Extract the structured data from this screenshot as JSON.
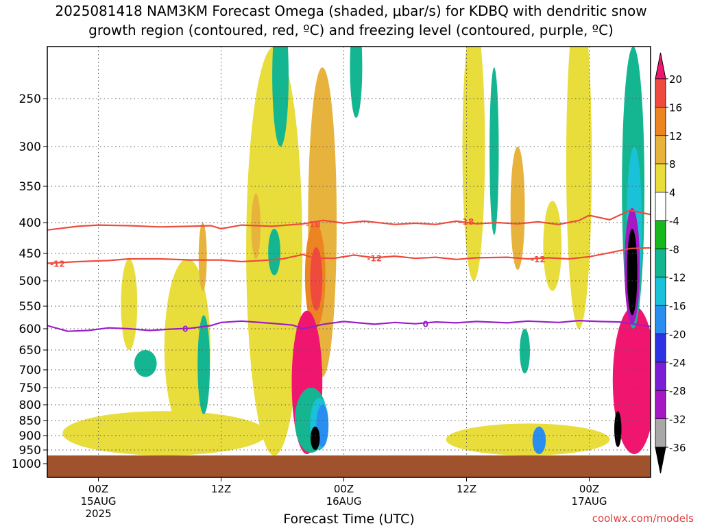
{
  "title_line1": "2025081418 NAM3KM Forecast Omega (shaded, μbar/s) for KDBQ with dendritic snow",
  "title_line2": "growth region (contoured, red, ºC) and freezing level (contoured, purple, ºC)",
  "credit": "coolwx.com/models",
  "chart_data": {
    "type": "heatmap",
    "title": "2025081418 NAM3KM Forecast Omega (shaded, μbar/s) for KDBQ with dendritic snow growth region (contoured, red, ºC) and freezing level (contoured, purple, ºC)",
    "xlabel": "Forecast Time (UTC)",
    "ylabel": "",
    "x_range_hours": [
      -5,
      54
    ],
    "x_ticks": [
      {
        "hour": 0,
        "lines": [
          "00Z",
          "15AUG",
          "2025"
        ]
      },
      {
        "hour": 12,
        "lines": [
          "12Z"
        ]
      },
      {
        "hour": 24,
        "lines": [
          "00Z",
          "16AUG"
        ]
      },
      {
        "hour": 36,
        "lines": [
          "12Z"
        ]
      },
      {
        "hour": 48,
        "lines": [
          "00Z",
          "17AUG"
        ]
      }
    ],
    "y_axis": {
      "scale": "pressure",
      "range_hpa": [
        1020,
        200
      ],
      "ticks": [
        250,
        300,
        350,
        400,
        450,
        500,
        550,
        600,
        650,
        700,
        750,
        800,
        850,
        900,
        950,
        1000
      ]
    },
    "ground_level_hpa": 970,
    "colorbar": {
      "units": "μbar/s",
      "levels": [
        20,
        16,
        12,
        8,
        4,
        -4,
        -8,
        -12,
        -16,
        -20,
        -24,
        -28,
        -32,
        -36
      ],
      "colors": [
        "#f0166f",
        "#ee4a3e",
        "#ec8421",
        "#e7b33c",
        "#e8dd3b",
        "#ffffff",
        "#18b81d",
        "#14b691",
        "#19c2d8",
        "#2a8df0",
        "#2d33e5",
        "#7b1fd7",
        "#a717c6",
        "#a8a8a8",
        "#000000"
      ]
    },
    "contours": [
      {
        "label": "-18",
        "color": "#ee4a3e",
        "points": [
          [
            -5,
            412
          ],
          [
            -2,
            406
          ],
          [
            0,
            404
          ],
          [
            3,
            405
          ],
          [
            6,
            407
          ],
          [
            9,
            406
          ],
          [
            11,
            405
          ],
          [
            12,
            410
          ],
          [
            14,
            404
          ],
          [
            17,
            406
          ],
          [
            20,
            402
          ],
          [
            22,
            397
          ],
          [
            24,
            401
          ],
          [
            26,
            398
          ],
          [
            29,
            403
          ],
          [
            31,
            401
          ],
          [
            33,
            403
          ],
          [
            35,
            398
          ],
          [
            37,
            402
          ],
          [
            39,
            400
          ],
          [
            41,
            402
          ],
          [
            43,
            399
          ],
          [
            45,
            403
          ],
          [
            47,
            397
          ],
          [
            48,
            390
          ],
          [
            50,
            396
          ],
          [
            52,
            383
          ],
          [
            54,
            389
          ]
        ]
      },
      {
        "label": "-12",
        "color": "#ee4a3e",
        "points": [
          [
            -5,
            468
          ],
          [
            -2,
            465
          ],
          [
            1,
            463
          ],
          [
            3,
            460
          ],
          [
            6,
            460
          ],
          [
            9,
            462
          ],
          [
            12,
            462
          ],
          [
            14,
            465
          ],
          [
            16,
            463
          ],
          [
            18,
            460
          ],
          [
            20,
            452
          ],
          [
            21,
            458
          ],
          [
            23,
            459
          ],
          [
            25,
            453
          ],
          [
            27,
            458
          ],
          [
            29,
            455
          ],
          [
            31,
            459
          ],
          [
            33,
            457
          ],
          [
            35,
            461
          ],
          [
            37,
            458
          ],
          [
            40,
            457
          ],
          [
            42,
            460
          ],
          [
            44,
            458
          ],
          [
            46,
            460
          ],
          [
            48,
            456
          ],
          [
            50,
            449
          ],
          [
            52,
            442
          ],
          [
            54,
            441
          ]
        ]
      },
      {
        "label": "0",
        "color": "#9a1dc9",
        "points": [
          [
            -5,
            593
          ],
          [
            -3,
            606
          ],
          [
            -1,
            604
          ],
          [
            1,
            598
          ],
          [
            3,
            600
          ],
          [
            5,
            604
          ],
          [
            7,
            601
          ],
          [
            9,
            599
          ],
          [
            11,
            593
          ],
          [
            12,
            586
          ],
          [
            14,
            583
          ],
          [
            17,
            588
          ],
          [
            19,
            592
          ],
          [
            20,
            600
          ],
          [
            22,
            590
          ],
          [
            24,
            584
          ],
          [
            27,
            590
          ],
          [
            29,
            586
          ],
          [
            31,
            589
          ],
          [
            33,
            585
          ],
          [
            35,
            587
          ],
          [
            37,
            584
          ],
          [
            40,
            587
          ],
          [
            42,
            583
          ],
          [
            45,
            586
          ],
          [
            47,
            582
          ],
          [
            49,
            584
          ],
          [
            51,
            585
          ],
          [
            53,
            592
          ],
          [
            54,
            595
          ]
        ]
      }
    ],
    "omega_regions": [
      {
        "kind": "ascent",
        "level": -8,
        "t": 17.8,
        "p_top": 160,
        "p_bottom": 300,
        "width_h": 1.6
      },
      {
        "kind": "ascent",
        "level": -8,
        "t": 17.2,
        "p_top": 410,
        "p_bottom": 490,
        "width_h": 1.2
      },
      {
        "kind": "ascent",
        "level": -8,
        "t": 25.2,
        "p_top": 170,
        "p_bottom": 270,
        "width_h": 1.2
      },
      {
        "kind": "ascent",
        "level": -8,
        "t": 10.3,
        "p_top": 570,
        "p_bottom": 830,
        "width_h": 1.2
      },
      {
        "kind": "ascent",
        "level": -8,
        "t": 4.6,
        "p_top": 650,
        "p_bottom": 720,
        "width_h": 2.2
      },
      {
        "kind": "ascent",
        "level": -8,
        "t": 38.7,
        "p_top": 220,
        "p_bottom": 420,
        "width_h": 0.9
      },
      {
        "kind": "ascent",
        "level": -8,
        "t": 41.7,
        "p_top": 600,
        "p_bottom": 710,
        "width_h": 1.0
      },
      {
        "kind": "ascent",
        "level": -8,
        "t": 52.3,
        "p_top": 200,
        "p_bottom": 600,
        "width_h": 2.2
      },
      {
        "kind": "ascent",
        "level": -8,
        "t": 20.8,
        "p_top": 750,
        "p_bottom": 960,
        "width_h": 3.2
      },
      {
        "kind": "ascent",
        "level": -12,
        "t": 21.6,
        "p_top": 780,
        "p_bottom": 950,
        "width_h": 1.8
      },
      {
        "kind": "ascent",
        "level": -16,
        "t": 21.9,
        "p_top": 800,
        "p_bottom": 940,
        "width_h": 1.2
      },
      {
        "kind": "ascent",
        "level": -36,
        "t": 21.2,
        "p_top": 870,
        "p_bottom": 950,
        "width_h": 0.9
      },
      {
        "kind": "ascent",
        "level": -12,
        "t": 52.4,
        "p_top": 300,
        "p_bottom": 550,
        "width_h": 1.5
      },
      {
        "kind": "ascent",
        "level": -28,
        "t": 52.2,
        "p_top": 380,
        "p_bottom": 590,
        "width_h": 1.5
      },
      {
        "kind": "ascent",
        "level": -36,
        "t": 52.2,
        "p_top": 410,
        "p_bottom": 570,
        "width_h": 1.0
      },
      {
        "kind": "ascent",
        "level": -36,
        "t": 50.8,
        "p_top": 820,
        "p_bottom": 940,
        "width_h": 0.7
      },
      {
        "kind": "ascent",
        "level": -16,
        "t": 43.1,
        "p_top": 870,
        "p_bottom": 965,
        "width_h": 1.3
      },
      {
        "kind": "descent",
        "level": 4,
        "t": 17.2,
        "p_top": 200,
        "p_bottom": 970,
        "width_h": 5.5
      },
      {
        "kind": "descent",
        "level": 4,
        "t": 6.5,
        "p_top": 820,
        "p_bottom": 970,
        "width_h": 20.0
      },
      {
        "kind": "descent",
        "level": 4,
        "t": 8.7,
        "p_top": 460,
        "p_bottom": 900,
        "width_h": 4.5
      },
      {
        "kind": "descent",
        "level": 4,
        "t": 3.0,
        "p_top": 460,
        "p_bottom": 650,
        "width_h": 1.6
      },
      {
        "kind": "descent",
        "level": 4,
        "t": 36.7,
        "p_top": 170,
        "p_bottom": 500,
        "width_h": 2.2
      },
      {
        "kind": "descent",
        "level": 4,
        "t": 44.4,
        "p_top": 370,
        "p_bottom": 520,
        "width_h": 1.8
      },
      {
        "kind": "descent",
        "level": 4,
        "t": 47.0,
        "p_top": 150,
        "p_bottom": 600,
        "width_h": 2.5
      },
      {
        "kind": "descent",
        "level": 4,
        "t": 42.0,
        "p_top": 860,
        "p_bottom": 970,
        "width_h": 16.0
      },
      {
        "kind": "descent",
        "level": 8,
        "t": 21.9,
        "p_top": 220,
        "p_bottom": 720,
        "width_h": 2.8
      },
      {
        "kind": "descent",
        "level": 12,
        "t": 21.2,
        "p_top": 400,
        "p_bottom": 600,
        "width_h": 2.0
      },
      {
        "kind": "descent",
        "level": 16,
        "t": 21.3,
        "p_top": 440,
        "p_bottom": 560,
        "width_h": 1.2
      },
      {
        "kind": "descent",
        "level": 8,
        "t": 15.4,
        "p_top": 360,
        "p_bottom": 460,
        "width_h": 0.9
      },
      {
        "kind": "descent",
        "level": 8,
        "t": 10.2,
        "p_top": 400,
        "p_bottom": 520,
        "width_h": 0.8
      },
      {
        "kind": "descent",
        "level": 8,
        "t": 41.0,
        "p_top": 300,
        "p_bottom": 480,
        "width_h": 1.4
      },
      {
        "kind": "descent",
        "level": 20,
        "t": 20.4,
        "p_top": 560,
        "p_bottom": 965,
        "width_h": 3.0
      },
      {
        "kind": "descent",
        "level": 20,
        "t": 52.4,
        "p_top": 550,
        "p_bottom": 965,
        "width_h": 4.2
      }
    ]
  }
}
